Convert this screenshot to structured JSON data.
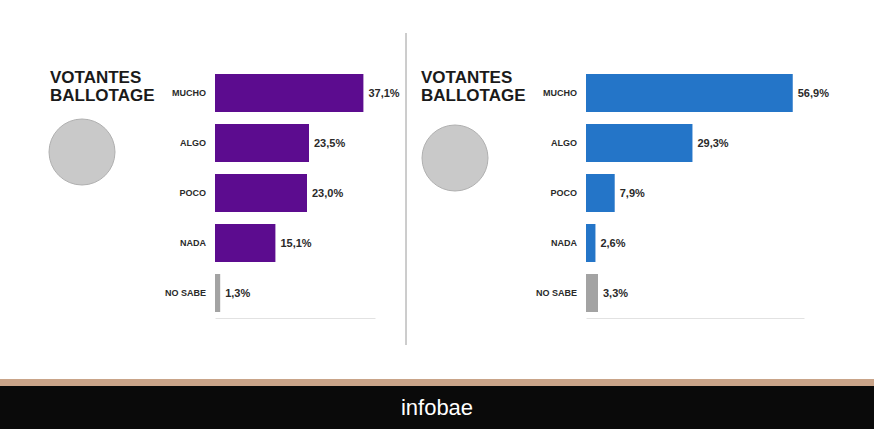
{
  "chart_data": [
    {
      "type": "bar",
      "title": "VOTANTES BALLOTAGE",
      "orientation": "horizontal",
      "categories": [
        "MUCHO",
        "ALGO",
        "POCO",
        "NADA",
        "NO SABE"
      ],
      "values": [
        37.1,
        23.5,
        23.0,
        15.1,
        1.3
      ],
      "value_labels": [
        "37,1%",
        "23,5%",
        "23,0%",
        "15,1%",
        "1,3%"
      ],
      "colors": [
        "#5c0c8f",
        "#5c0c8f",
        "#5c0c8f",
        "#5c0c8f",
        "#a3a3a3"
      ],
      "xlim": [
        0,
        40
      ],
      "data_labels": true,
      "tick_labels": "y",
      "grid": false
    },
    {
      "type": "bar",
      "title": "VOTANTES BALLOTAGE",
      "orientation": "horizontal",
      "categories": [
        "MUCHO",
        "ALGO",
        "POCO",
        "NADA",
        "NO SABE"
      ],
      "values": [
        56.9,
        29.3,
        7.9,
        2.6,
        3.3
      ],
      "value_labels": [
        "56,9%",
        "29,3%",
        "7,9%",
        "2,6%",
        "3,3%"
      ],
      "colors": [
        "#2475c8",
        "#2475c8",
        "#2475c8",
        "#2475c8",
        "#a3a3a3"
      ],
      "xlim": [
        0,
        60
      ],
      "data_labels": true,
      "tick_labels": "y",
      "grid": false
    }
  ],
  "footer": "infobae"
}
